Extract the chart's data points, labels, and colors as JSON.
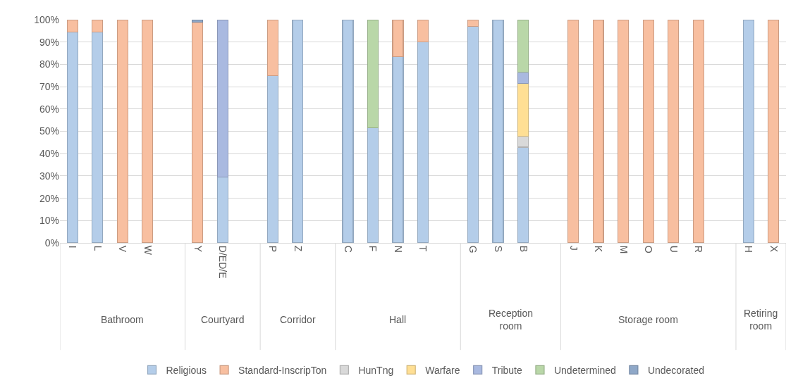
{
  "chart_data": {
    "type": "bar",
    "stacked": true,
    "categories": [
      "I",
      "L",
      "V",
      "W",
      null,
      "Y",
      "D/ED/E",
      null,
      "P",
      "Z",
      null,
      "C",
      "F",
      "N",
      "T",
      null,
      "G",
      "S",
      "B",
      null,
      "J",
      "K",
      "M",
      "O",
      "U",
      "R",
      null,
      "H",
      "X"
    ],
    "annotations": [
      "Bathroom",
      "Courtyard",
      "Corridor",
      "Hall",
      "Reception room",
      "Storage room",
      "Retiring room"
    ],
    "series": [
      {
        "name": "Religious",
        "color": "#b4cde9",
        "values": [
          94.4,
          94.4,
          null,
          null,
          null,
          null,
          29.6,
          null,
          75,
          100,
          null,
          100,
          51.6,
          83.5,
          90,
          null,
          96.9,
          100,
          42.9,
          null,
          null,
          null,
          null,
          null,
          null,
          null,
          null,
          100,
          null
        ]
      },
      {
        "name": "Standard-InscripTon",
        "color": "#f8bfa0",
        "values": [
          5.6,
          5.6,
          100,
          100,
          null,
          98.8,
          null,
          null,
          25,
          null,
          null,
          null,
          null,
          16.5,
          10,
          null,
          3.1,
          null,
          null,
          null,
          100,
          100,
          100,
          100,
          100,
          100,
          null,
          null,
          100
        ]
      },
      {
        "name": "HunTng",
        "color": "#d9d9d9",
        "values": [
          null,
          null,
          null,
          null,
          null,
          null,
          null,
          null,
          null,
          null,
          null,
          null,
          null,
          null,
          null,
          null,
          null,
          null,
          5.0,
          null,
          null,
          null,
          null,
          null,
          null,
          null,
          null,
          null,
          null
        ]
      },
      {
        "name": "Warfare",
        "color": "#ffdf94",
        "values": [
          null,
          null,
          null,
          null,
          null,
          null,
          null,
          null,
          null,
          null,
          null,
          null,
          null,
          null,
          null,
          null,
          null,
          null,
          23.5,
          null,
          null,
          null,
          null,
          null,
          null,
          null,
          null,
          null,
          null
        ]
      },
      {
        "name": "Tribute",
        "color": "#a9b9e0",
        "values": [
          null,
          null,
          null,
          null,
          null,
          null,
          70.4,
          null,
          null,
          null,
          null,
          null,
          null,
          null,
          null,
          null,
          null,
          null,
          5.0,
          null,
          null,
          null,
          null,
          null,
          null,
          null,
          null,
          null,
          null
        ]
      },
      {
        "name": "Undetermined",
        "color": "#b9d7a8",
        "values": [
          null,
          null,
          null,
          null,
          null,
          null,
          null,
          null,
          null,
          null,
          null,
          null,
          48.4,
          null,
          null,
          null,
          null,
          null,
          23.6,
          null,
          null,
          null,
          null,
          null,
          null,
          null,
          null,
          null,
          null
        ]
      },
      {
        "name": "Undecorated",
        "color": "#8fa8c8",
        "values": [
          null,
          null,
          null,
          null,
          null,
          1.2,
          null,
          null,
          null,
          null,
          null,
          null,
          null,
          null,
          null,
          null,
          null,
          null,
          null,
          null,
          null,
          null,
          null,
          null,
          null,
          null,
          null,
          null,
          null
        ]
      }
    ],
    "ylim": [
      0,
      100
    ],
    "yticks": [
      {
        "value": 0,
        "label": "0%"
      },
      {
        "value": 10,
        "label": "10%"
      },
      {
        "value": 20,
        "label": "20%"
      },
      {
        "value": 30,
        "label": "30%"
      },
      {
        "value": 40,
        "label": "40%"
      },
      {
        "value": 50,
        "label": "50%"
      },
      {
        "value": 60,
        "label": "60%"
      },
      {
        "value": 70,
        "label": "70%"
      },
      {
        "value": 80,
        "label": "80%"
      },
      {
        "value": 90,
        "label": "90%"
      },
      {
        "value": 100,
        "label": "100%"
      }
    ],
    "grid": "y",
    "legend": "bottom"
  }
}
